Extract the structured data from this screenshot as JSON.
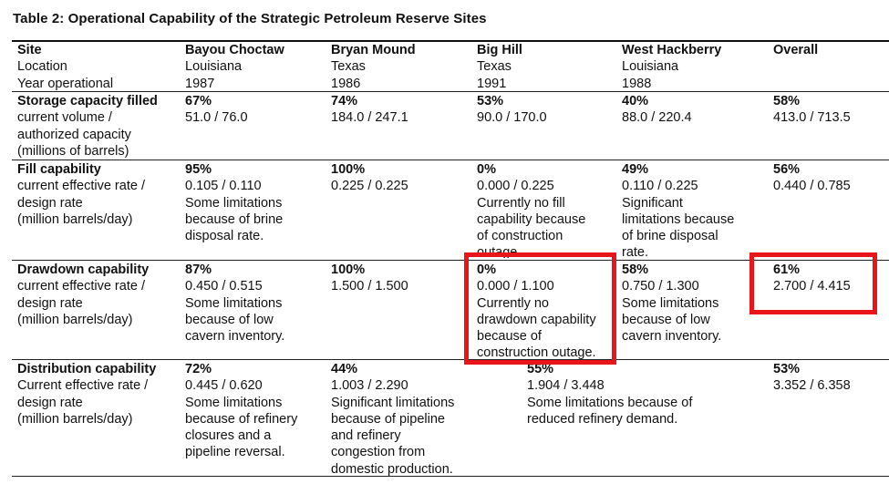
{
  "title": "Table 2: Operational Capability of the Strategic Petroleum Reserve Sites",
  "header": {
    "label_col": [
      "Site",
      "Location",
      "Year operational"
    ],
    "sites": [
      {
        "name": "Bayou Choctaw",
        "location": "Louisiana",
        "year": "1987"
      },
      {
        "name": "Bryan Mound",
        "location": "Texas",
        "year": "1986"
      },
      {
        "name": "Big Hill",
        "location": "Texas",
        "year": "1991"
      },
      {
        "name": "West Hackberry",
        "location": "Louisiana",
        "year": "1988"
      },
      {
        "name": "Overall",
        "location": "",
        "year": ""
      }
    ]
  },
  "rows": {
    "storage": {
      "label": "Storage capacity filled",
      "desc": [
        "current volume /",
        "authorized capacity",
        "(millions of barrels)"
      ],
      "cells": [
        {
          "pct": "67%",
          "ratio": "51.0 / 76.0"
        },
        {
          "pct": "74%",
          "ratio": "184.0 / 247.1"
        },
        {
          "pct": "53%",
          "ratio": "90.0 / 170.0"
        },
        {
          "pct": "40%",
          "ratio": "88.0 / 220.4"
        },
        {
          "pct": "58%",
          "ratio": "413.0 / 713.5"
        }
      ]
    },
    "fill": {
      "label": "Fill capability",
      "desc": [
        "current effective rate /",
        "design rate",
        "(million barrels/day)"
      ],
      "cells": [
        {
          "pct": "95%",
          "ratio": "0.105 / 0.110",
          "note": [
            "Some limitations",
            "because of brine",
            "disposal rate."
          ]
        },
        {
          "pct": "100%",
          "ratio": "0.225 / 0.225",
          "note": []
        },
        {
          "pct": "0%",
          "ratio": "0.000 / 0.225",
          "note": [
            "Currently no fill",
            "capability because",
            "of construction",
            "outage."
          ]
        },
        {
          "pct": "49%",
          "ratio": "0.110 / 0.225",
          "note": [
            "Significant",
            "limitations because",
            "of brine disposal",
            "rate."
          ]
        },
        {
          "pct": "56%",
          "ratio": "0.440 / 0.785",
          "note": []
        }
      ]
    },
    "drawdown": {
      "label": "Drawdown capability",
      "desc": [
        "current effective rate /",
        "design rate",
        "(million barrels/day)"
      ],
      "cells": [
        {
          "pct": "87%",
          "ratio": "0.450 / 0.515",
          "note": [
            "Some limitations",
            "because of low",
            "cavern inventory."
          ]
        },
        {
          "pct": "100%",
          "ratio": "1.500 / 1.500",
          "note": []
        },
        {
          "pct": "0%",
          "ratio": "0.000 / 1.100",
          "note": [
            "Currently no",
            "drawdown capability",
            "because of",
            "construction outage."
          ]
        },
        {
          "pct": "58%",
          "ratio": "0.750 / 1.300",
          "note": [
            "Some limitations",
            "because of low",
            "cavern inventory."
          ]
        },
        {
          "pct": "61%",
          "ratio": "2.700 / 4.415",
          "note": []
        }
      ]
    },
    "distribution": {
      "label": "Distribution capability",
      "desc": [
        "Current effective rate /",
        "design rate",
        "(million barrels/day)"
      ],
      "cells": [
        {
          "pct": "72%",
          "ratio": "0.445 / 0.620",
          "note": [
            "Some limitations",
            "because of refinery",
            "closures and a",
            "pipeline reversal."
          ]
        },
        {
          "pct": "44%",
          "ratio": "1.003 / 2.290",
          "note": [
            "Significant limitations",
            "because of pipeline",
            "and refinery",
            "congestion from",
            "domestic production."
          ]
        },
        {
          "pct": "55%",
          "ratio": "1.904 / 3.448",
          "note": [
            "Some limitations because of",
            "reduced refinery demand."
          ]
        },
        {
          "pct": "53%",
          "ratio": "3.352 / 6.358",
          "note": []
        }
      ]
    }
  },
  "highlight_color": "#e8151b"
}
